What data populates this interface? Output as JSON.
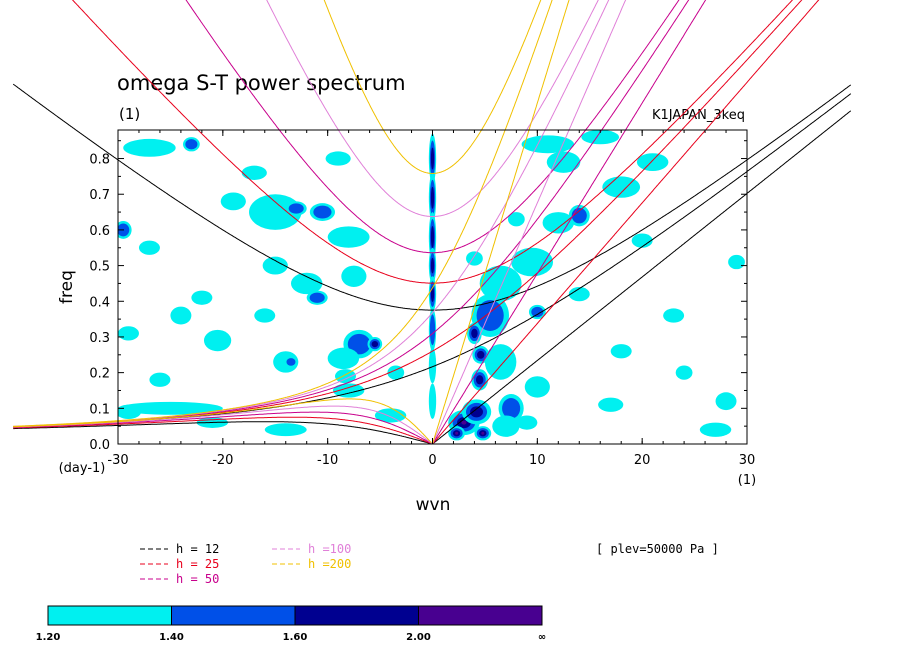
{
  "chart_data": {
    "type": "heatmap",
    "title": "omega S-T power spectrum",
    "subtitle": "(1)",
    "run_label": "K1JAPAN_3keq",
    "xlabel": "wvn",
    "ylabel": "freq",
    "x_unit_label": "(1)",
    "y_unit_label": "(day-1)",
    "xlim": [
      -30,
      30
    ],
    "ylim": [
      0,
      0.88
    ],
    "xticks": [
      -30,
      -20,
      -10,
      0,
      10,
      20,
      30
    ],
    "xtick_labels": [
      "-30",
      "-20",
      "-10",
      "0",
      "10",
      "20",
      "30"
    ],
    "yticks": [
      0,
      0.1,
      0.2,
      0.3,
      0.4,
      0.5,
      0.6,
      0.7,
      0.8
    ],
    "ytick_labels": [
      "0.0",
      "0.1",
      "0.2",
      "0.3",
      "0.4",
      "0.5",
      "0.6",
      "0.7",
      "0.8"
    ],
    "plev_label": "[ plev=50000 Pa ]",
    "dispersion_curves": [
      {
        "legend": "h = 12",
        "h": 12,
        "color": "#000000"
      },
      {
        "legend": "h = 25",
        "h": 25,
        "color": "#e8001c"
      },
      {
        "legend": "h = 50",
        "h": 50,
        "color": "#c8008c"
      },
      {
        "legend": "h =100",
        "h": 100,
        "color": "#e080d8"
      },
      {
        "legend": "h =200",
        "h": 200,
        "color": "#f0c000"
      }
    ],
    "colorbar": {
      "levels": [
        "1.20",
        "1.40",
        "1.60",
        "2.00",
        "∞"
      ],
      "colors": [
        "#00f0f0",
        "#0050e8",
        "#000090",
        "#480090"
      ]
    },
    "shaded_regions": [
      {
        "x": 0,
        "y": 0.8,
        "dx": 0.35,
        "dy": 0.07,
        "level": 2
      },
      {
        "x": 0,
        "y": 0.69,
        "dx": 0.35,
        "dy": 0.07,
        "level": 2
      },
      {
        "x": 0,
        "y": 0.58,
        "dx": 0.35,
        "dy": 0.07,
        "level": 2
      },
      {
        "x": 0,
        "y": 0.5,
        "dx": 0.35,
        "dy": 0.05,
        "level": 2
      },
      {
        "x": 0,
        "y": 0.42,
        "dx": 0.35,
        "dy": 0.05,
        "level": 2
      },
      {
        "x": 0,
        "y": 0.32,
        "dx": 0.35,
        "dy": 0.06,
        "level": 1
      },
      {
        "x": 0,
        "y": 0.22,
        "dx": 0.35,
        "dy": 0.05,
        "level": 0
      },
      {
        "x": 0,
        "y": 0.12,
        "dx": 0.35,
        "dy": 0.05,
        "level": 0
      },
      {
        "x": 3,
        "y": 0.06,
        "dx": 1.5,
        "dy": 0.035,
        "level": 3
      },
      {
        "x": 2.3,
        "y": 0.03,
        "dx": 0.8,
        "dy": 0.02,
        "level": 3
      },
      {
        "x": 4.8,
        "y": 0.03,
        "dx": 0.8,
        "dy": 0.02,
        "level": 3
      },
      {
        "x": 4.2,
        "y": 0.09,
        "dx": 1.4,
        "dy": 0.035,
        "level": 2
      },
      {
        "x": 4.5,
        "y": 0.18,
        "dx": 0.8,
        "dy": 0.03,
        "level": 2
      },
      {
        "x": 4.6,
        "y": 0.25,
        "dx": 0.8,
        "dy": 0.025,
        "level": 2
      },
      {
        "x": 5.5,
        "y": 0.36,
        "dx": 1.8,
        "dy": 0.06,
        "level": 1
      },
      {
        "x": 4.0,
        "y": 0.31,
        "dx": 0.7,
        "dy": 0.03,
        "level": 2
      },
      {
        "x": 6.5,
        "y": 0.45,
        "dx": 2.0,
        "dy": 0.05,
        "level": 0
      },
      {
        "x": 7.5,
        "y": 0.1,
        "dx": 1.2,
        "dy": 0.04,
        "level": 1
      },
      {
        "x": 7.0,
        "y": 0.05,
        "dx": 1.3,
        "dy": 0.03,
        "level": 0
      },
      {
        "x": 6.5,
        "y": 0.23,
        "dx": 1.5,
        "dy": 0.05,
        "level": 0
      },
      {
        "x": 10,
        "y": 0.16,
        "dx": 1.2,
        "dy": 0.03,
        "level": 0
      },
      {
        "x": 9.5,
        "y": 0.51,
        "dx": 2.0,
        "dy": 0.04,
        "level": 0
      },
      {
        "x": 12,
        "y": 0.62,
        "dx": 1.5,
        "dy": 0.03,
        "level": 0
      },
      {
        "x": 12.5,
        "y": 0.79,
        "dx": 1.6,
        "dy": 0.03,
        "level": 0
      },
      {
        "x": 14,
        "y": 0.64,
        "dx": 1.0,
        "dy": 0.03,
        "level": 1
      },
      {
        "x": 18,
        "y": 0.72,
        "dx": 1.8,
        "dy": 0.03,
        "level": 0
      },
      {
        "x": 21,
        "y": 0.79,
        "dx": 1.5,
        "dy": 0.025,
        "level": 0
      },
      {
        "x": 11,
        "y": 0.84,
        "dx": 2.5,
        "dy": 0.025,
        "level": 0
      },
      {
        "x": 16,
        "y": 0.86,
        "dx": 1.8,
        "dy": 0.02,
        "level": 0
      },
      {
        "x": 9,
        "y": 0.06,
        "dx": 1.0,
        "dy": 0.02,
        "level": 0
      },
      {
        "x": 17,
        "y": 0.11,
        "dx": 1.2,
        "dy": 0.02,
        "level": 0
      },
      {
        "x": 29,
        "y": 0.51,
        "dx": 0.8,
        "dy": 0.02,
        "level": 0
      },
      {
        "x": 28,
        "y": 0.12,
        "dx": 1.0,
        "dy": 0.025,
        "level": 0
      },
      {
        "x": 27,
        "y": 0.04,
        "dx": 1.5,
        "dy": 0.02,
        "level": 0
      },
      {
        "x": 18,
        "y": 0.26,
        "dx": 1.0,
        "dy": 0.02,
        "level": 0
      },
      {
        "x": 23,
        "y": 0.36,
        "dx": 1.0,
        "dy": 0.02,
        "level": 0
      },
      {
        "x": -29.5,
        "y": 0.6,
        "dx": 0.8,
        "dy": 0.025,
        "level": 1
      },
      {
        "x": -27,
        "y": 0.83,
        "dx": 2.5,
        "dy": 0.025,
        "level": 0
      },
      {
        "x": -23,
        "y": 0.84,
        "dx": 0.8,
        "dy": 0.02,
        "level": 1
      },
      {
        "x": -19,
        "y": 0.68,
        "dx": 1.2,
        "dy": 0.025,
        "level": 0
      },
      {
        "x": -15,
        "y": 0.65,
        "dx": 2.5,
        "dy": 0.05,
        "level": 0
      },
      {
        "x": -13,
        "y": 0.66,
        "dx": 1.0,
        "dy": 0.02,
        "level": 1
      },
      {
        "x": -10.5,
        "y": 0.65,
        "dx": 1.2,
        "dy": 0.025,
        "level": 1
      },
      {
        "x": -8,
        "y": 0.58,
        "dx": 2.0,
        "dy": 0.03,
        "level": 0
      },
      {
        "x": -7.5,
        "y": 0.47,
        "dx": 1.2,
        "dy": 0.03,
        "level": 0
      },
      {
        "x": -12,
        "y": 0.45,
        "dx": 1.5,
        "dy": 0.03,
        "level": 0
      },
      {
        "x": -11,
        "y": 0.41,
        "dx": 1.0,
        "dy": 0.02,
        "level": 1
      },
      {
        "x": -15,
        "y": 0.5,
        "dx": 1.2,
        "dy": 0.025,
        "level": 0
      },
      {
        "x": -7,
        "y": 0.28,
        "dx": 1.5,
        "dy": 0.04,
        "level": 1
      },
      {
        "x": -5.5,
        "y": 0.28,
        "dx": 0.7,
        "dy": 0.02,
        "level": 2
      },
      {
        "x": -8.5,
        "y": 0.24,
        "dx": 1.5,
        "dy": 0.03,
        "level": 0
      },
      {
        "x": -14,
        "y": 0.23,
        "dx": 1.2,
        "dy": 0.03,
        "level": 0
      },
      {
        "x": -13.5,
        "y": 0.23,
        "dx": 0.6,
        "dy": 0.015,
        "level": 1
      },
      {
        "x": -20.5,
        "y": 0.29,
        "dx": 1.3,
        "dy": 0.03,
        "level": 0
      },
      {
        "x": -24,
        "y": 0.36,
        "dx": 1.0,
        "dy": 0.025,
        "level": 0
      },
      {
        "x": -16,
        "y": 0.36,
        "dx": 1.0,
        "dy": 0.02,
        "level": 0
      },
      {
        "x": -29,
        "y": 0.31,
        "dx": 1.0,
        "dy": 0.02,
        "level": 0
      },
      {
        "x": -25,
        "y": 0.1,
        "dx": 5.0,
        "dy": 0.018,
        "level": 0
      },
      {
        "x": -29,
        "y": 0.09,
        "dx": 1.2,
        "dy": 0.02,
        "level": 0
      },
      {
        "x": -21,
        "y": 0.06,
        "dx": 1.5,
        "dy": 0.015,
        "level": 0
      },
      {
        "x": -14,
        "y": 0.04,
        "dx": 2.0,
        "dy": 0.018,
        "level": 0
      },
      {
        "x": -8,
        "y": 0.15,
        "dx": 1.5,
        "dy": 0.02,
        "level": 0
      },
      {
        "x": -8.3,
        "y": 0.19,
        "dx": 1.0,
        "dy": 0.02,
        "level": 0
      },
      {
        "x": -4,
        "y": 0.08,
        "dx": 1.5,
        "dy": 0.02,
        "level": 0
      },
      {
        "x": -17,
        "y": 0.76,
        "dx": 1.2,
        "dy": 0.02,
        "level": 0
      },
      {
        "x": -9,
        "y": 0.8,
        "dx": 1.2,
        "dy": 0.02,
        "level": 0
      },
      {
        "x": -27,
        "y": 0.55,
        "dx": 1.0,
        "dy": 0.02,
        "level": 0
      },
      {
        "x": -22,
        "y": 0.41,
        "dx": 1.0,
        "dy": 0.02,
        "level": 0
      },
      {
        "x": -26,
        "y": 0.18,
        "dx": 1.0,
        "dy": 0.02,
        "level": 0
      },
      {
        "x": -3.5,
        "y": 0.2,
        "dx": 0.8,
        "dy": 0.02,
        "level": 0
      },
      {
        "x": 20,
        "y": 0.57,
        "dx": 1.0,
        "dy": 0.02,
        "level": 0
      },
      {
        "x": 24,
        "y": 0.2,
        "dx": 0.8,
        "dy": 0.02,
        "level": 0
      },
      {
        "x": 14,
        "y": 0.42,
        "dx": 1.0,
        "dy": 0.02,
        "level": 0
      },
      {
        "x": 10,
        "y": 0.37,
        "dx": 0.8,
        "dy": 0.02,
        "level": 1
      },
      {
        "x": 4,
        "y": 0.52,
        "dx": 0.8,
        "dy": 0.02,
        "level": 0
      },
      {
        "x": 8,
        "y": 0.63,
        "dx": 0.8,
        "dy": 0.02,
        "level": 0
      }
    ]
  }
}
